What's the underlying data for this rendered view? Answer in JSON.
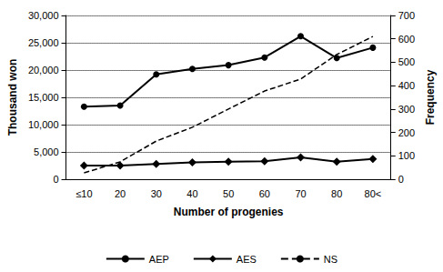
{
  "chart_data": {
    "type": "line",
    "x_label": "Number of progenies",
    "y_label": "Thousand won",
    "y2_label": "Frequency",
    "categories": [
      "≤10",
      "20",
      "30",
      "40",
      "50",
      "60",
      "70",
      "80",
      "80<"
    ],
    "series": [
      {
        "name": "AEP",
        "color": "#000000",
        "marker": "circle",
        "line_style": "solid",
        "values": [
          13300,
          13500,
          19200,
          20200,
          20900,
          22300,
          26200,
          22200,
          24100
        ]
      },
      {
        "name": "AES",
        "color": "#000000",
        "marker": "diamond",
        "line_style": "solid",
        "values": [
          2500,
          2500,
          2800,
          3100,
          3200,
          3300,
          4000,
          3200,
          3700
        ]
      },
      {
        "name": "NS",
        "color": "#000000",
        "marker": "none",
        "line_style": "dashed",
        "axis": "y2",
        "values": [
          27,
          74,
          163,
          222,
          300,
          377,
          428,
          533,
          610
        ]
      }
    ],
    "ylim": [
      0,
      30000
    ],
    "yticks": [
      0,
      {
        "value": 5000,
        "label": "5,000"
      },
      {
        "value": 10000,
        "label": "10,000"
      },
      {
        "value": 15000,
        "label": "15,000"
      },
      {
        "value": 20000,
        "label": "20,000"
      },
      {
        "value": 25000,
        "label": "25,000"
      },
      {
        "value": 30000,
        "label": "30,000"
      }
    ],
    "y2lim": [
      0,
      700
    ],
    "y2ticks": [
      0,
      100,
      200,
      300,
      400,
      500,
      600,
      700
    ],
    "grid": true,
    "legend": "bottom"
  }
}
